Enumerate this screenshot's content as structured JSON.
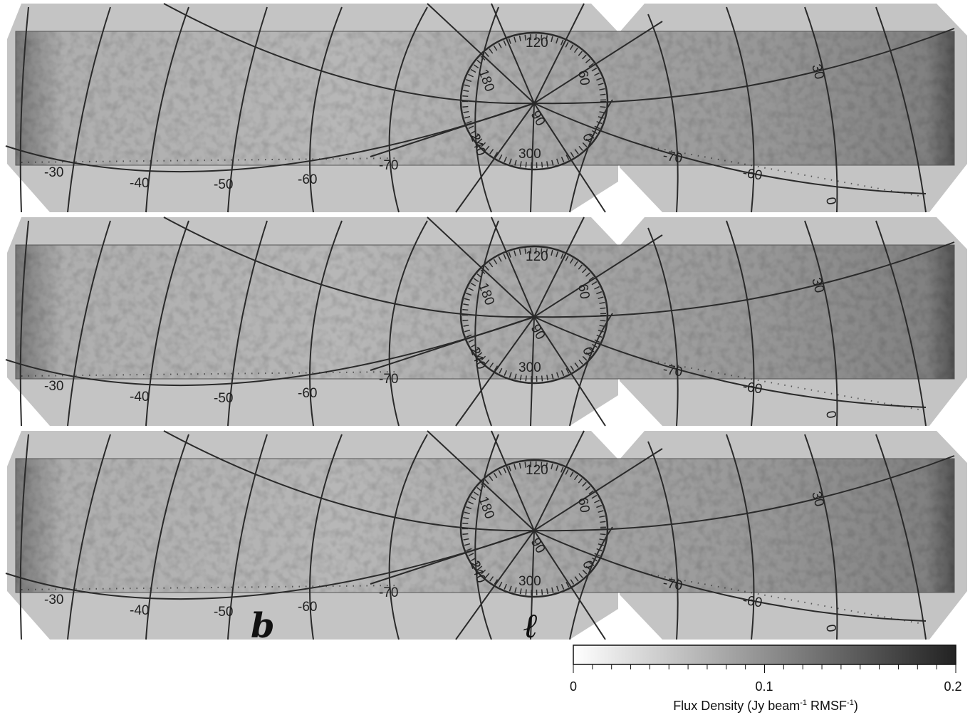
{
  "figure": {
    "panels": [
      {
        "id": "panel-1"
      },
      {
        "id": "panel-2"
      },
      {
        "id": "panel-3"
      }
    ],
    "latitude_labels": [
      "-30",
      "-40",
      "-50",
      "-60",
      "-70",
      "-70",
      "-60",
      "0"
    ],
    "polar_longitude_labels": [
      "120",
      "180",
      "60",
      "240",
      "0",
      "300",
      "90"
    ],
    "right_latitude_label": "30",
    "coordinate_letters": {
      "b": "b",
      "l": "ℓ"
    }
  },
  "colorbar": {
    "min_label": "0",
    "mid_label": "0.1",
    "max_label": "0.2",
    "title_main": "Flux Density (Jy beam",
    "title_sup1": "-1",
    "title_mid": " RMSF",
    "title_sup2": "-1",
    "title_end": ")",
    "colormap": [
      "#ffffff",
      "#222222"
    ]
  }
}
